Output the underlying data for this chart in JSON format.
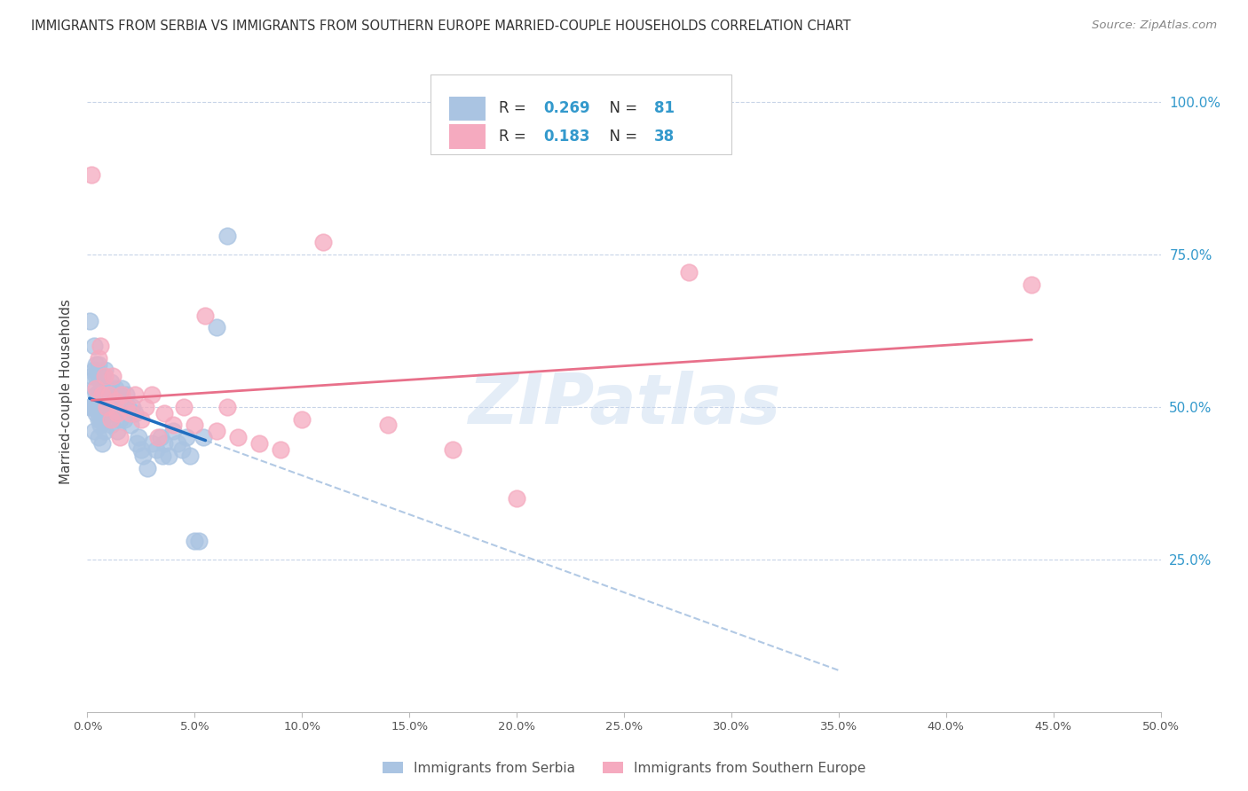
{
  "title": "IMMIGRANTS FROM SERBIA VS IMMIGRANTS FROM SOUTHERN EUROPE MARRIED-COUPLE HOUSEHOLDS CORRELATION CHART",
  "source": "Source: ZipAtlas.com",
  "ylabel": "Married-couple Households",
  "serbia_R": 0.269,
  "serbia_N": 81,
  "southern_R": 0.183,
  "southern_N": 38,
  "serbia_color": "#aac4e2",
  "southern_color": "#f5aabf",
  "serbia_line_color": "#1f6dbf",
  "southern_line_color": "#e8708a",
  "dashed_line_color": "#aac4e2",
  "serbia_x": [
    0.001,
    0.001,
    0.002,
    0.002,
    0.003,
    0.003,
    0.003,
    0.003,
    0.003,
    0.004,
    0.004,
    0.004,
    0.004,
    0.004,
    0.005,
    0.005,
    0.005,
    0.005,
    0.005,
    0.005,
    0.006,
    0.006,
    0.006,
    0.006,
    0.006,
    0.007,
    0.007,
    0.007,
    0.007,
    0.007,
    0.008,
    0.008,
    0.008,
    0.008,
    0.009,
    0.009,
    0.009,
    0.01,
    0.01,
    0.01,
    0.011,
    0.011,
    0.011,
    0.012,
    0.012,
    0.013,
    0.013,
    0.014,
    0.014,
    0.015,
    0.015,
    0.016,
    0.016,
    0.017,
    0.017,
    0.018,
    0.019,
    0.02,
    0.021,
    0.022,
    0.023,
    0.024,
    0.025,
    0.026,
    0.028,
    0.03,
    0.032,
    0.034,
    0.035,
    0.036,
    0.038,
    0.04,
    0.042,
    0.044,
    0.046,
    0.048,
    0.05,
    0.052,
    0.054,
    0.06,
    0.065
  ],
  "serbia_y": [
    0.5,
    0.64,
    0.5,
    0.55,
    0.5,
    0.53,
    0.56,
    0.6,
    0.46,
    0.5,
    0.52,
    0.49,
    0.55,
    0.57,
    0.48,
    0.5,
    0.52,
    0.55,
    0.57,
    0.45,
    0.5,
    0.48,
    0.52,
    0.54,
    0.47,
    0.5,
    0.52,
    0.48,
    0.55,
    0.44,
    0.5,
    0.52,
    0.56,
    0.46,
    0.5,
    0.53,
    0.48,
    0.51,
    0.53,
    0.49,
    0.51,
    0.54,
    0.47,
    0.5,
    0.52,
    0.49,
    0.53,
    0.5,
    0.46,
    0.48,
    0.52,
    0.5,
    0.53,
    0.48,
    0.5,
    0.52,
    0.5,
    0.47,
    0.5,
    0.49,
    0.44,
    0.45,
    0.43,
    0.42,
    0.4,
    0.44,
    0.43,
    0.45,
    0.42,
    0.44,
    0.42,
    0.46,
    0.44,
    0.43,
    0.45,
    0.42,
    0.28,
    0.28,
    0.45,
    0.63,
    0.78
  ],
  "southern_x": [
    0.002,
    0.004,
    0.005,
    0.006,
    0.007,
    0.008,
    0.009,
    0.01,
    0.011,
    0.012,
    0.013,
    0.014,
    0.015,
    0.016,
    0.018,
    0.02,
    0.022,
    0.025,
    0.027,
    0.03,
    0.033,
    0.036,
    0.04,
    0.045,
    0.05,
    0.055,
    0.06,
    0.065,
    0.07,
    0.08,
    0.09,
    0.1,
    0.11,
    0.14,
    0.17,
    0.2,
    0.28,
    0.44
  ],
  "southern_y": [
    0.88,
    0.53,
    0.58,
    0.6,
    0.52,
    0.55,
    0.5,
    0.52,
    0.48,
    0.55,
    0.51,
    0.49,
    0.45,
    0.52,
    0.5,
    0.49,
    0.52,
    0.48,
    0.5,
    0.52,
    0.45,
    0.49,
    0.47,
    0.5,
    0.47,
    0.65,
    0.46,
    0.5,
    0.45,
    0.44,
    0.43,
    0.48,
    0.77,
    0.47,
    0.43,
    0.35,
    0.72,
    0.7
  ],
  "xlim": [
    0.0,
    0.5
  ],
  "ylim": [
    0.0,
    1.05
  ],
  "watermark": "ZIPatlas",
  "background_color": "#ffffff",
  "grid_color": "#c8d4e8",
  "right_axis_color": "#3399cc",
  "title_color": "#333333",
  "source_color": "#888888",
  "axis_label_color": "#555555"
}
